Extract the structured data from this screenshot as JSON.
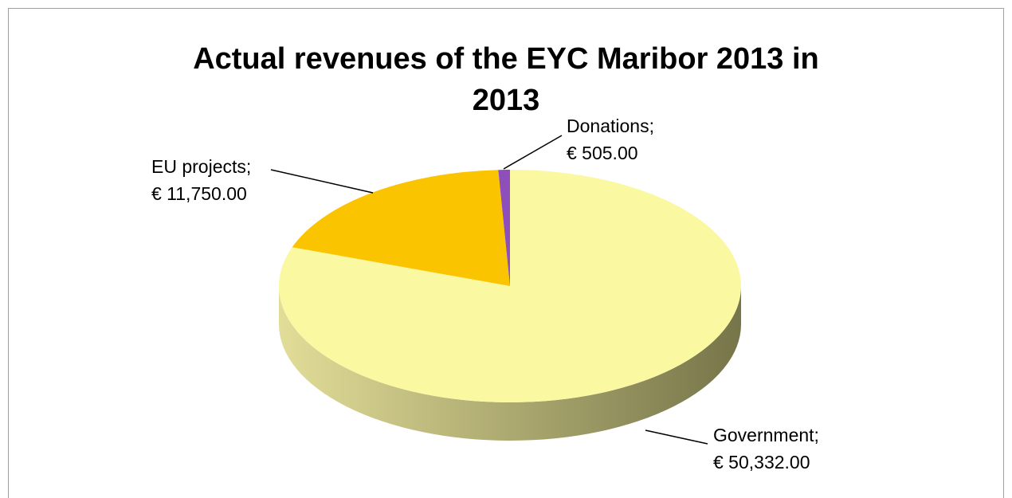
{
  "chart_data": {
    "type": "pie",
    "title": "Actual revenues of the EYC Maribor 2013 in 2013",
    "categories": [
      "Government;",
      "EU projects;",
      "Donations;"
    ],
    "values": [
      50332,
      11750,
      505
    ],
    "value_labels": [
      "€ 50,332.00",
      "€ 11,750.00",
      "€ 505.00"
    ],
    "colors": [
      "#faf8a0",
      "#fbc400",
      "#8e4fba"
    ],
    "side_colors": [
      [
        "#e2dd98",
        "#767549"
      ],
      [
        "#b89000",
        "#8a6c00"
      ],
      [
        "#6a3a8a",
        "#55306f"
      ]
    ]
  }
}
